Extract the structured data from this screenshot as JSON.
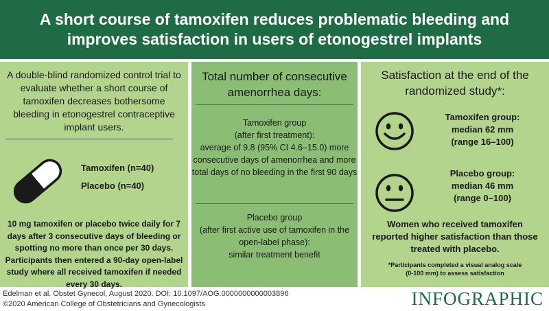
{
  "header": {
    "title_line1": "A short course of tamoxifen reduces problematic bleeding and",
    "title_line2": "improves satisfaction in users of etonogestrel implants"
  },
  "left": {
    "description": "A double-blind randomized control trial to evaluate whether a short course of tamoxifen decreases bothersome bleeding in etonogestrel contraceptive implant users.",
    "tamoxifen_arm": "Tamoxifen (n=40)",
    "placebo_arm": "Placebo (n=40)",
    "protocol": "10 mg tamoxifen or placebo twice daily for 7 days after 3 consecutive days of bleeding or spotting no more than once per 30 days. Participants then entered a 90-day open-label study where all received tamoxifen if needed every 30 days."
  },
  "middle": {
    "title": "Total number of consecutive amenorrhea days:",
    "tamoxifen_group": {
      "heading": "Tamoxifen group",
      "qualifier": "(after first treatment):",
      "result": "average of 9.8 (95% CI 4.6–15.0) more consecutive days of amenorrhea and more total days of no bleeding in the first 90 days"
    },
    "placebo_group": {
      "heading": "Placebo group",
      "qualifier": "(after first active use of tamoxifen in the open-label phase):",
      "result": "similar treatment benefit"
    }
  },
  "right": {
    "title": "Satisfaction at the end of the randomized study*:",
    "tamoxifen": {
      "group": "Tamoxifen group:",
      "median": "median 62 mm",
      "range": "(range 16–100)"
    },
    "placebo": {
      "group": "Placebo group:",
      "median": "median 46 mm",
      "range": "(range 0–100)"
    },
    "conclusion": "Women who received tamoxifen reported higher satisfaction than those treated with placebo.",
    "footnote_line1": "*Participants completed a visual analog scale",
    "footnote_line2": "(0-100 mm) to assess satisfaction"
  },
  "footer": {
    "citation_line1": "Edelman et al. Obstet Gynecol, August 2020. DOI: 10.1097/AOG.0000000000003896",
    "citation_line2": "©2020 American College of Obstetricians and Gynecologists",
    "logo_text": "INFOGRAPHIC"
  },
  "colors": {
    "header": "#1e6b45",
    "side_panel": "#b3d48c",
    "middle_panel": "#8bbd74"
  },
  "icons": [
    "pill-icon",
    "happy-face-icon",
    "neutral-face-icon"
  ]
}
